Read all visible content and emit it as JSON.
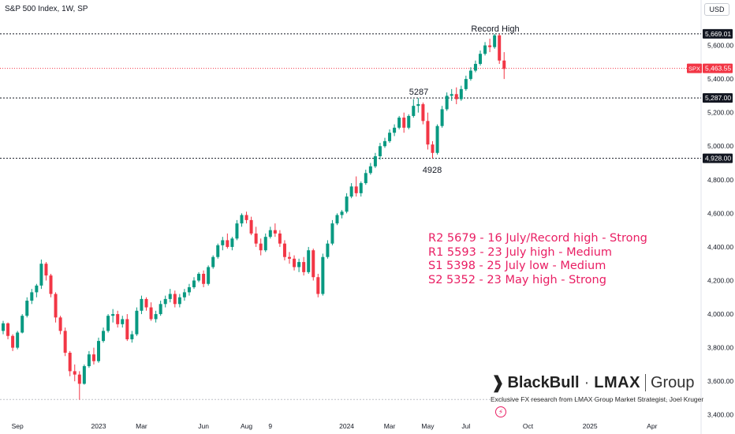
{
  "header": {
    "title": "S&P 500 Index, 1W, SP",
    "currency": "USD"
  },
  "annotations": {
    "record_high": "Record High",
    "level_5287": "5287",
    "level_4928": "4928"
  },
  "levels_text": [
    "R2 5679 - 16 July/Record high - Strong",
    "R1 5593 - 23 July high - Medium",
    "S1 5398 - 25 July low - Medium",
    "S2 5352 - 23 May high - Strong"
  ],
  "brand": {
    "name": "BlackBull",
    "separator": "·",
    "lmax": "LMAX",
    "group": "Group",
    "tagline": "Exclusive FX research from LMAX Group Market Strategist, Joel Kruger"
  },
  "colors": {
    "up": "#089981",
    "down": "#f23645",
    "current": "#f23645",
    "levels_text": "#e91e63"
  },
  "chart_data": {
    "type": "candlestick",
    "title": "S&P 500 Index, 1W, SP",
    "timeframe": "1W",
    "currency": "USD",
    "y_axis": {
      "range": [
        3380,
        5800
      ],
      "ticks": [
        3400,
        3600,
        3800,
        4000,
        4200,
        4400,
        4600,
        4800,
        5000,
        5200,
        5400,
        5600
      ],
      "tick_labels": [
        "3,400.00",
        "3,600.00",
        "3,800.00",
        "4,000.00",
        "4,200.00",
        "4,400.00",
        "4,600.00",
        "4,800.00",
        "5,000.00",
        "5,200.00",
        "5,400.00",
        "5,600.00"
      ]
    },
    "x_axis": {
      "labels": [
        {
          "label": "Sep",
          "week": 3
        },
        {
          "label": "2023",
          "week": 20
        },
        {
          "label": "Mar",
          "week": 29
        },
        {
          "label": "Jun",
          "week": 42
        },
        {
          "label": "Aug",
          "week": 51
        },
        {
          "label": "9",
          "week": 56
        },
        {
          "label": "2024",
          "week": 72
        },
        {
          "label": "Mar",
          "week": 81
        },
        {
          "label": "May",
          "week": 89
        },
        {
          "label": "Jul",
          "week": 97
        },
        {
          "label": "Oct",
          "week": 110
        },
        {
          "label": "2025",
          "week": 123
        },
        {
          "label": "Apr",
          "week": 136
        }
      ]
    },
    "horizontal_levels": [
      {
        "value": 5669.01,
        "label": "5,669.01",
        "style": "dashed"
      },
      {
        "value": 5287.0,
        "label": "5,287.00",
        "style": "dashed"
      },
      {
        "value": 4928.0,
        "label": "4,928.00",
        "style": "dashed"
      },
      {
        "value": 3491.58,
        "label": "",
        "style": "dashed-light"
      }
    ],
    "current_price": {
      "value": 5463.55,
      "label": "5,463.55",
      "symbol": "SPX"
    },
    "candles_ohlc": [
      [
        3900,
        3960,
        3880,
        3945
      ],
      [
        3945,
        3950,
        3850,
        3870
      ],
      [
        3870,
        3880,
        3780,
        3800
      ],
      [
        3800,
        3900,
        3790,
        3890
      ],
      [
        3890,
        4000,
        3885,
        3990
      ],
      [
        3990,
        4100,
        3980,
        4080
      ],
      [
        4080,
        4150,
        4060,
        4130
      ],
      [
        4130,
        4180,
        4100,
        4170
      ],
      [
        4170,
        4325,
        4150,
        4300
      ],
      [
        4300,
        4310,
        4200,
        4230
      ],
      [
        4230,
        4240,
        4100,
        4120
      ],
      [
        4120,
        4130,
        3950,
        3980
      ],
      [
        3980,
        3990,
        3880,
        3900
      ],
      [
        3900,
        3920,
        3750,
        3770
      ],
      [
        3770,
        3780,
        3630,
        3660
      ],
      [
        3660,
        3700,
        3600,
        3640
      ],
      [
        3640,
        3660,
        3490,
        3585
      ],
      [
        3585,
        3700,
        3580,
        3690
      ],
      [
        3690,
        3780,
        3680,
        3760
      ],
      [
        3760,
        3800,
        3700,
        3720
      ],
      [
        3720,
        3860,
        3710,
        3840
      ],
      [
        3840,
        3920,
        3830,
        3900
      ],
      [
        3900,
        4000,
        3890,
        3990
      ],
      [
        3990,
        4030,
        3950,
        4000
      ],
      [
        4000,
        4020,
        3920,
        3940
      ],
      [
        3940,
        3990,
        3920,
        3970
      ],
      [
        3970,
        4000,
        3840,
        3850
      ],
      [
        3850,
        3900,
        3830,
        3880
      ],
      [
        3880,
        4040,
        3870,
        4020
      ],
      [
        4020,
        4110,
        4000,
        4090
      ],
      [
        4090,
        4100,
        4020,
        4040
      ],
      [
        4040,
        4070,
        3960,
        3970
      ],
      [
        3970,
        4020,
        3950,
        4000
      ],
      [
        4000,
        4080,
        3990,
        4060
      ],
      [
        4060,
        4110,
        4040,
        4090
      ],
      [
        4090,
        4150,
        4070,
        4120
      ],
      [
        4120,
        4140,
        4040,
        4060
      ],
      [
        4060,
        4120,
        4040,
        4100
      ],
      [
        4100,
        4150,
        4080,
        4130
      ],
      [
        4130,
        4180,
        4110,
        4160
      ],
      [
        4160,
        4220,
        4150,
        4200
      ],
      [
        4200,
        4250,
        4190,
        4240
      ],
      [
        4240,
        4260,
        4160,
        4180
      ],
      [
        4180,
        4290,
        4170,
        4280
      ],
      [
        4280,
        4350,
        4270,
        4340
      ],
      [
        4340,
        4420,
        4330,
        4410
      ],
      [
        4410,
        4460,
        4380,
        4440
      ],
      [
        4440,
        4480,
        4390,
        4400
      ],
      [
        4400,
        4460,
        4380,
        4450
      ],
      [
        4450,
        4560,
        4440,
        4540
      ],
      [
        4540,
        4600,
        4520,
        4590
      ],
      [
        4590,
        4610,
        4540,
        4560
      ],
      [
        4560,
        4580,
        4470,
        4480
      ],
      [
        4480,
        4520,
        4400,
        4420
      ],
      [
        4420,
        4450,
        4350,
        4380
      ],
      [
        4380,
        4480,
        4370,
        4460
      ],
      [
        4460,
        4520,
        4450,
        4500
      ],
      [
        4500,
        4540,
        4460,
        4480
      ],
      [
        4480,
        4500,
        4400,
        4420
      ],
      [
        4420,
        4440,
        4320,
        4340
      ],
      [
        4340,
        4370,
        4300,
        4330
      ],
      [
        4330,
        4350,
        4260,
        4280
      ],
      [
        4280,
        4330,
        4250,
        4310
      ],
      [
        4310,
        4340,
        4230,
        4250
      ],
      [
        4250,
        4400,
        4240,
        4380
      ],
      [
        4380,
        4390,
        4200,
        4220
      ],
      [
        4220,
        4240,
        4100,
        4120
      ],
      [
        4120,
        4360,
        4110,
        4340
      ],
      [
        4340,
        4440,
        4330,
        4420
      ],
      [
        4420,
        4560,
        4410,
        4540
      ],
      [
        4540,
        4600,
        4530,
        4590
      ],
      [
        4590,
        4620,
        4570,
        4610
      ],
      [
        4610,
        4720,
        4600,
        4700
      ],
      [
        4700,
        4780,
        4690,
        4760
      ],
      [
        4760,
        4820,
        4700,
        4720
      ],
      [
        4720,
        4790,
        4700,
        4780
      ],
      [
        4780,
        4860,
        4770,
        4840
      ],
      [
        4840,
        4900,
        4830,
        4880
      ],
      [
        4880,
        4960,
        4870,
        4940
      ],
      [
        4940,
        5020,
        4920,
        5000
      ],
      [
        5000,
        5050,
        4990,
        5030
      ],
      [
        5030,
        5100,
        5020,
        5080
      ],
      [
        5080,
        5130,
        5060,
        5110
      ],
      [
        5110,
        5180,
        5100,
        5170
      ],
      [
        5170,
        5200,
        5080,
        5110
      ],
      [
        5110,
        5190,
        5100,
        5180
      ],
      [
        5180,
        5280,
        5170,
        5240
      ],
      [
        5240,
        5287,
        5200,
        5250
      ],
      [
        5250,
        5260,
        5130,
        5150
      ],
      [
        5150,
        5200,
        4980,
        5010
      ],
      [
        5010,
        5030,
        4928,
        4960
      ],
      [
        4960,
        5130,
        4950,
        5120
      ],
      [
        5120,
        5240,
        5110,
        5220
      ],
      [
        5220,
        5320,
        5210,
        5300
      ],
      [
        5300,
        5340,
        5270,
        5310
      ],
      [
        5310,
        5350,
        5250,
        5280
      ],
      [
        5280,
        5360,
        5270,
        5340
      ],
      [
        5340,
        5420,
        5330,
        5400
      ],
      [
        5400,
        5470,
        5390,
        5450
      ],
      [
        5450,
        5510,
        5440,
        5490
      ],
      [
        5490,
        5570,
        5480,
        5550
      ],
      [
        5550,
        5620,
        5540,
        5600
      ],
      [
        5600,
        5640,
        5560,
        5590
      ],
      [
        5590,
        5669,
        5580,
        5660
      ],
      [
        5660,
        5669,
        5490,
        5510
      ],
      [
        5510,
        5560,
        5400,
        5460
      ]
    ]
  }
}
